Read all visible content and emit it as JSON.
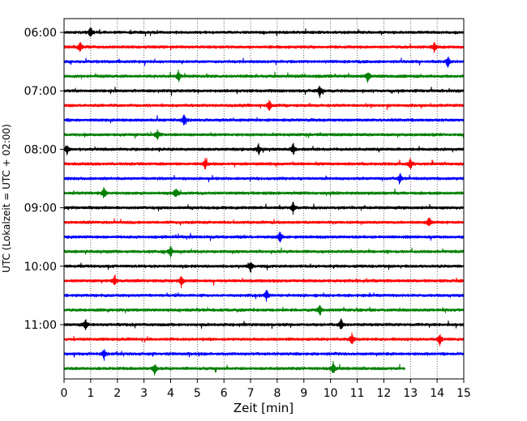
{
  "chart_data": {
    "type": "line",
    "title": "",
    "xlabel": "Zeit  [min]",
    "ylabel": "UTC (Lokalzeit = UTC + 02:00)",
    "xlim": [
      0,
      15
    ],
    "x_ticks": [
      0,
      1,
      2,
      3,
      4,
      5,
      6,
      7,
      8,
      9,
      10,
      11,
      12,
      13,
      14,
      15
    ],
    "y_tick_labels": [
      "06:00",
      "07:00",
      "08:00",
      "09:00",
      "10:00",
      "11:00"
    ],
    "vertical_grid": "dotted",
    "trace_minutes": 15,
    "trace_colors": [
      "#000000",
      "#ff0000",
      "#0000ff",
      "#008000"
    ],
    "traces": [
      {
        "start": "06:00",
        "end_min": 15,
        "events": [
          1.0
        ]
      },
      {
        "start": "06:15",
        "end_min": 15,
        "events": [
          0.6,
          13.9
        ]
      },
      {
        "start": "06:30",
        "end_min": 15,
        "events": [
          14.4
        ]
      },
      {
        "start": "06:45",
        "end_min": 15,
        "events": [
          4.3,
          11.4
        ]
      },
      {
        "start": "07:00",
        "end_min": 15,
        "events": [
          9.6
        ]
      },
      {
        "start": "07:15",
        "end_min": 15,
        "events": [
          7.7
        ]
      },
      {
        "start": "07:30",
        "end_min": 15,
        "events": [
          4.5
        ]
      },
      {
        "start": "07:45",
        "end_min": 15,
        "events": [
          3.5
        ]
      },
      {
        "start": "08:00",
        "end_min": 15,
        "events": [
          7.3,
          8.6,
          0.1
        ]
      },
      {
        "start": "08:15",
        "end_min": 15,
        "events": [
          5.3,
          13.0
        ]
      },
      {
        "start": "08:30",
        "end_min": 15,
        "events": [
          12.6
        ]
      },
      {
        "start": "08:45",
        "end_min": 15,
        "events": [
          1.5,
          4.2
        ]
      },
      {
        "start": "09:00",
        "end_min": 15,
        "events": [
          8.6
        ]
      },
      {
        "start": "09:15",
        "end_min": 15,
        "events": [
          13.7
        ]
      },
      {
        "start": "09:30",
        "end_min": 15,
        "events": [
          8.1
        ]
      },
      {
        "start": "09:45",
        "end_min": 15,
        "events": [
          4.0
        ]
      },
      {
        "start": "10:00",
        "end_min": 15,
        "events": [
          7.0
        ]
      },
      {
        "start": "10:15",
        "end_min": 15,
        "events": [
          1.9,
          4.4
        ]
      },
      {
        "start": "10:30",
        "end_min": 15,
        "events": [
          7.6
        ]
      },
      {
        "start": "10:45",
        "end_min": 15,
        "events": [
          9.6
        ]
      },
      {
        "start": "11:00",
        "end_min": 15,
        "events": [
          0.8,
          10.4
        ]
      },
      {
        "start": "11:15",
        "end_min": 15,
        "events": [
          10.8,
          14.1
        ]
      },
      {
        "start": "11:30",
        "end_min": 15,
        "events": [
          1.5
        ]
      },
      {
        "start": "11:45",
        "end_min": 12.8,
        "events": [
          3.4,
          10.1
        ]
      }
    ]
  }
}
